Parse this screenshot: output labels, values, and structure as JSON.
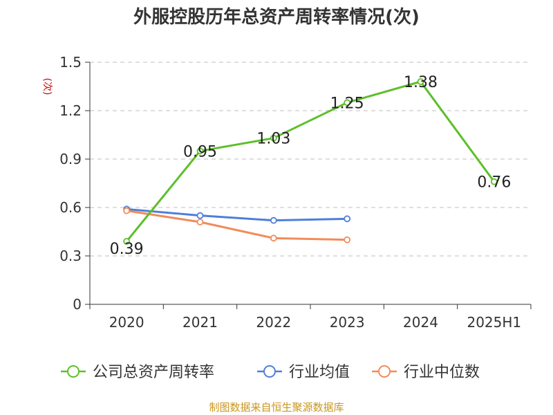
{
  "title": "外服控股历年总资产周转率情况(次)",
  "source": "制图数据来自恒生聚源数据库",
  "chart_data": {
    "type": "line",
    "title": "外服控股历年总资产周转率情况(次)",
    "ylabel": "(次)",
    "xlabel": "",
    "categories": [
      "2020",
      "2021",
      "2022",
      "2023",
      "2024",
      "2025H1"
    ],
    "ylim": [
      0,
      1.5
    ],
    "yticks": [
      "0",
      "0.3",
      "0.6",
      "0.9",
      "1.2",
      "1.5"
    ],
    "grid": "horizontal-dashed",
    "legend_position": "bottom",
    "series": [
      {
        "name": "公司总资产周转率",
        "color": "#5cbf2a",
        "values": [
          0.39,
          0.95,
          1.03,
          1.25,
          1.38,
          0.76
        ],
        "labels": [
          "0.39",
          "0.95",
          "1.03",
          "1.25",
          "1.38",
          "0.76"
        ]
      },
      {
        "name": "行业均值",
        "color": "#4e7fd9",
        "values": [
          0.59,
          0.55,
          0.52,
          0.53,
          null,
          null
        ]
      },
      {
        "name": "行业中位数",
        "color": "#f28b5a",
        "values": [
          0.58,
          0.51,
          0.41,
          0.4,
          null,
          null
        ]
      }
    ]
  }
}
